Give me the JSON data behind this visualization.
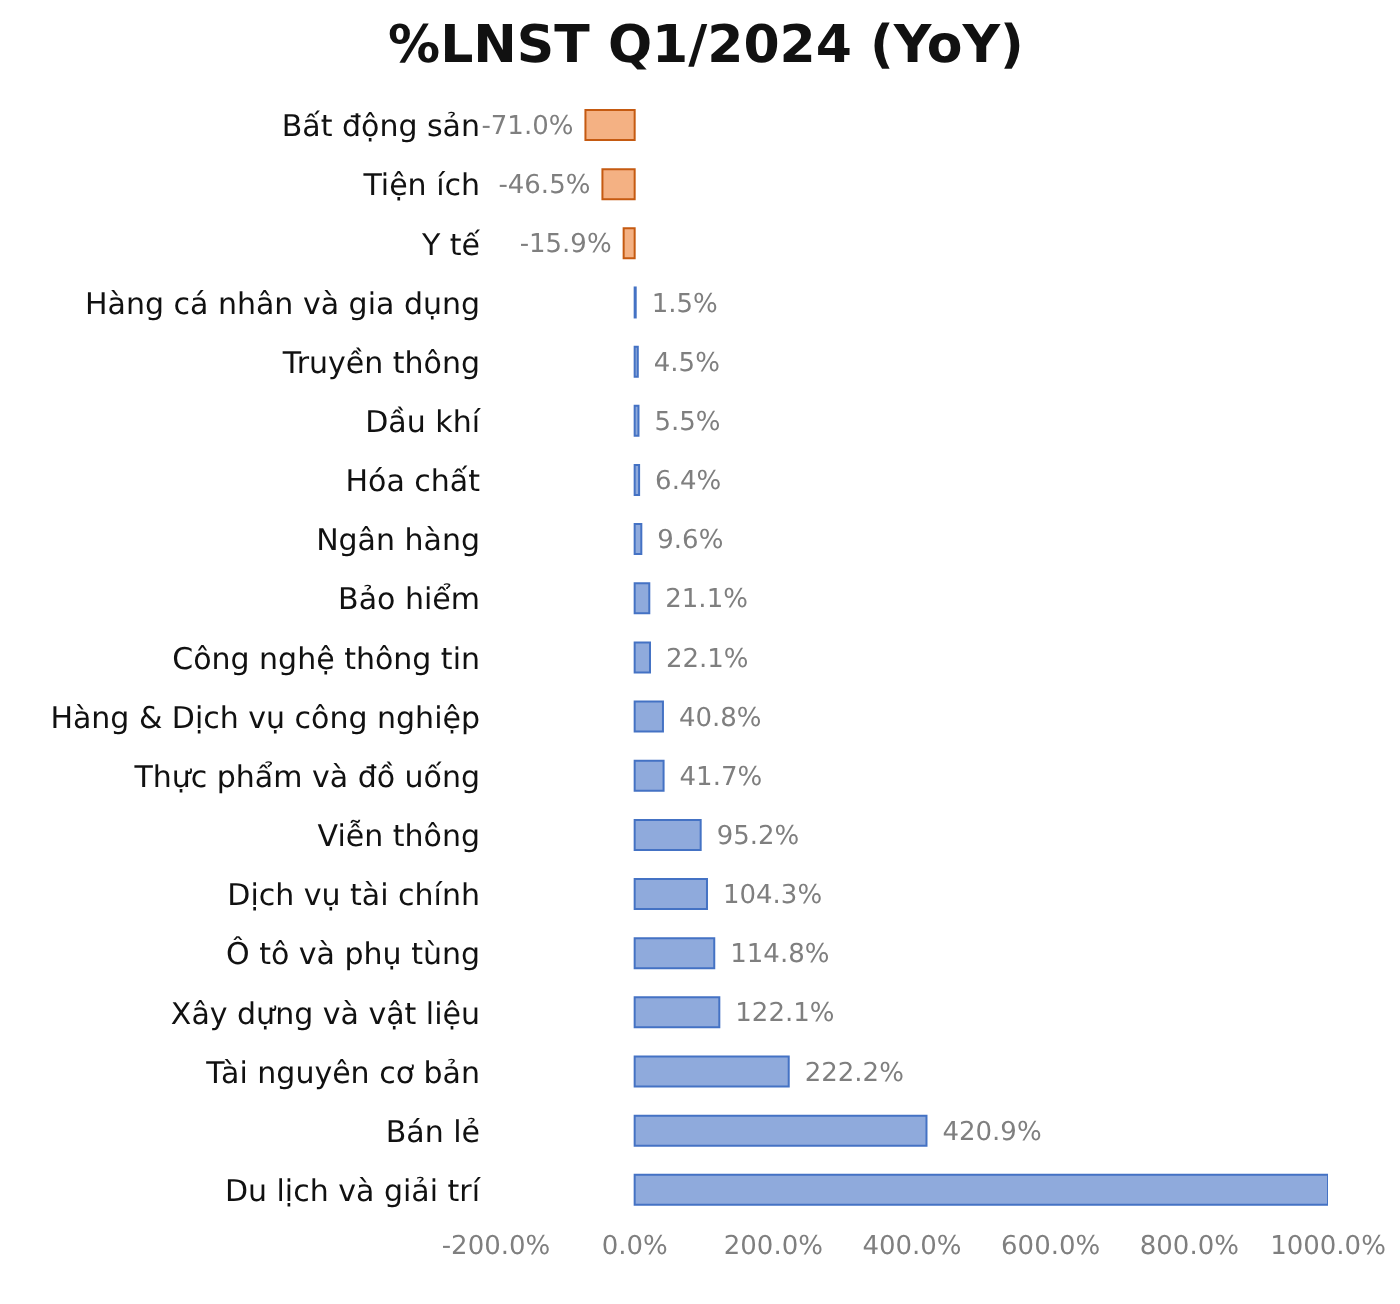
{
  "chart_data": {
    "type": "bar",
    "orientation": "horizontal",
    "title": "%LNST Q1/2024 (YoY)",
    "categories": [
      "Bất động sản",
      "Tiện ích",
      "Y tế",
      "Hàng cá nhân và gia dụng",
      "Truyền thông",
      "Dầu khí",
      "Hóa chất",
      "Ngân hàng",
      "Bảo hiểm",
      "Công nghệ thông tin",
      "Hàng & Dịch vụ công nghiệp",
      "Thực phẩm và đồ uống",
      "Viễn thông",
      "Dịch vụ tài chính",
      "Ô tô và phụ tùng",
      "Xây dựng và vật liệu",
      "Tài nguyên cơ bản",
      "Bán lẻ",
      "Du lịch và giải trí"
    ],
    "values": [
      -71.0,
      -46.5,
      -15.9,
      1.5,
      4.5,
      5.5,
      6.4,
      9.6,
      21.1,
      22.1,
      40.8,
      41.7,
      95.2,
      104.3,
      114.8,
      122.1,
      222.2,
      420.9,
      1000
    ],
    "value_labels": [
      "-71.0%",
      "-46.5%",
      "-15.9%",
      "1.5%",
      "4.5%",
      "5.5%",
      "6.4%",
      "9.6%",
      "21.1%",
      "22.1%",
      "40.8%",
      "41.7%",
      "95.2%",
      "104.3%",
      "114.8%",
      "122.1%",
      "222.2%",
      "420.9%",
      null
    ],
    "colors": [
      "#f4b183",
      "#f4b183",
      "#f4b183",
      "#8faadc",
      "#8faadc",
      "#8faadc",
      "#8faadc",
      "#8faadc",
      "#8faadc",
      "#8faadc",
      "#8faadc",
      "#8faadc",
      "#8faadc",
      "#8faadc",
      "#8faadc",
      "#8faadc",
      "#8faadc",
      "#8faadc",
      "#8faadc"
    ],
    "xlim": [
      -200,
      1000
    ],
    "xticks": [
      {
        "value": -200,
        "label": "-200.0%"
      },
      {
        "value": 0,
        "label": "0.0%"
      },
      {
        "value": 200,
        "label": "200.0%"
      },
      {
        "value": 400,
        "label": "400.0%"
      },
      {
        "value": 600,
        "label": "600.0%"
      },
      {
        "value": 800,
        "label": "800.0%"
      },
      {
        "value": 1000,
        "label": "1000.0%"
      }
    ],
    "grid": false,
    "legend": false
  }
}
